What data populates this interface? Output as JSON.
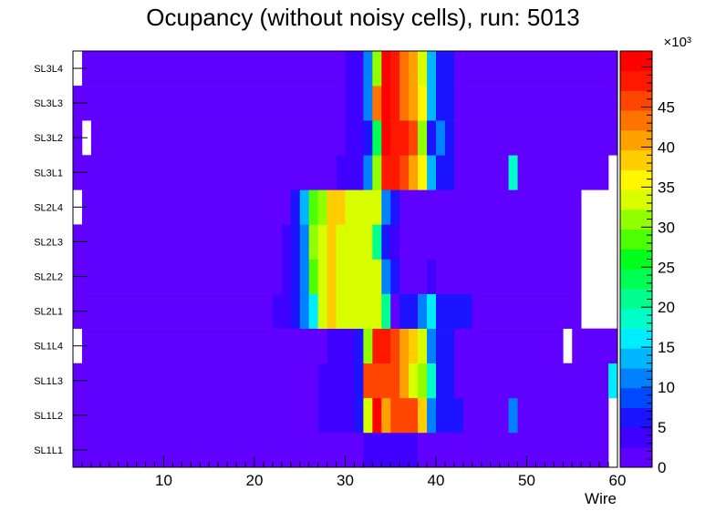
{
  "chart_data": {
    "type": "heatmap",
    "title": "Ocupancy (without noisy cells), run: 5013",
    "xlabel": "Wire",
    "ylabel": "",
    "xlim": [
      0,
      60
    ],
    "x_ticks": [
      10,
      20,
      30,
      40,
      50,
      60
    ],
    "x_tick_labels": [
      "10",
      "20",
      "30",
      "40",
      "50",
      "60"
    ],
    "layers": [
      "SL1L1",
      "SL1L2",
      "SL1L3",
      "SL1L4",
      "SL2L1",
      "SL2L2",
      "SL2L3",
      "SL2L4",
      "SL3L1",
      "SL3L2",
      "SL3L3",
      "SL3L4"
    ],
    "z_min": 0,
    "z_max": 52,
    "z_multiplier_label": "×10³",
    "z_ticks": [
      0,
      5,
      10,
      15,
      20,
      25,
      30,
      35,
      40,
      45
    ],
    "z_tick_labels": [
      "0",
      "5",
      "10",
      "15",
      "20",
      "25",
      "30",
      "35",
      "40",
      "45"
    ],
    "palette": [
      "#6000ff",
      "#4000ff",
      "#1c13ff",
      "#0049ff",
      "#0081ff",
      "#00b6ff",
      "#00edff",
      "#00ffc8",
      "#00ff8f",
      "#00ff55",
      "#00ff1c",
      "#4dff00",
      "#92ff00",
      "#d7ff00",
      "#fff600",
      "#ffcd00",
      "#ffa100",
      "#ff7400",
      "#ff4600",
      "#ff1800",
      "#ff0000"
    ],
    "background_value": 1.5,
    "rows": [
      {
        "layer": "SL1L1",
        "empty": [
          60
        ],
        "cells": [
          [
            33,
            38,
            4
          ]
        ]
      },
      {
        "layer": "SL1L2",
        "empty": [
          60
        ],
        "cells": [
          [
            28,
            31,
            3.5
          ],
          [
            32,
            32,
            7
          ],
          [
            33,
            33,
            33
          ],
          [
            34,
            34,
            50
          ],
          [
            35,
            35,
            41
          ],
          [
            36,
            37,
            45
          ],
          [
            38,
            38,
            47
          ],
          [
            39,
            39,
            38
          ],
          [
            40,
            40,
            12
          ],
          [
            41,
            43,
            5
          ],
          [
            49,
            49,
            12
          ]
        ]
      },
      {
        "layer": "SL1L3",
        "empty": [],
        "cells": [
          [
            28,
            31,
            3.5
          ],
          [
            32,
            32,
            7
          ],
          [
            33,
            36,
            46
          ],
          [
            37,
            37,
            42
          ],
          [
            38,
            38,
            34
          ],
          [
            39,
            39,
            30
          ],
          [
            40,
            40,
            18
          ],
          [
            41,
            42,
            5
          ],
          [
            60,
            60,
            17
          ]
        ]
      },
      {
        "layer": "SL1L4",
        "empty": [
          1,
          55
        ],
        "cells": [
          [
            29,
            31,
            3.5
          ],
          [
            32,
            32,
            7
          ],
          [
            33,
            33,
            31
          ],
          [
            34,
            35,
            48
          ],
          [
            36,
            36,
            45
          ],
          [
            37,
            37,
            42
          ],
          [
            38,
            38,
            38
          ],
          [
            39,
            39,
            33
          ],
          [
            40,
            40,
            10
          ],
          [
            41,
            42,
            5
          ]
        ]
      },
      {
        "layer": "SL2L1",
        "empty": [
          57,
          58,
          59,
          60
        ],
        "cells": [
          [
            23,
            24,
            3.5
          ],
          [
            25,
            25,
            6
          ],
          [
            26,
            26,
            10
          ],
          [
            27,
            27,
            16
          ],
          [
            28,
            28,
            34
          ],
          [
            29,
            29,
            38
          ],
          [
            30,
            34,
            33
          ],
          [
            35,
            35,
            20
          ],
          [
            37,
            38,
            5
          ],
          [
            39,
            39,
            10
          ],
          [
            40,
            40,
            16
          ],
          [
            41,
            44,
            5
          ]
        ]
      },
      {
        "layer": "SL2L2",
        "empty": [
          57,
          58,
          59,
          60
        ],
        "cells": [
          [
            24,
            24,
            3.5
          ],
          [
            25,
            25,
            6
          ],
          [
            26,
            26,
            12
          ],
          [
            27,
            27,
            28
          ],
          [
            28,
            28,
            34
          ],
          [
            29,
            29,
            38
          ],
          [
            30,
            34,
            33
          ],
          [
            35,
            35,
            10
          ],
          [
            36,
            36,
            6
          ],
          [
            40,
            40,
            4
          ]
        ]
      },
      {
        "layer": "SL2L3",
        "empty": [
          57,
          58,
          59,
          60
        ],
        "cells": [
          [
            24,
            24,
            3.5
          ],
          [
            25,
            25,
            6
          ],
          [
            26,
            26,
            12
          ],
          [
            27,
            27,
            30
          ],
          [
            28,
            28,
            34
          ],
          [
            29,
            29,
            38
          ],
          [
            30,
            33,
            33
          ],
          [
            34,
            34,
            20
          ],
          [
            35,
            35,
            6
          ],
          [
            36,
            36,
            4
          ]
        ]
      },
      {
        "layer": "SL2L4",
        "empty": [
          1,
          57,
          58,
          59,
          60
        ],
        "cells": [
          [
            25,
            25,
            6
          ],
          [
            26,
            26,
            14
          ],
          [
            27,
            27,
            28
          ],
          [
            28,
            28,
            32
          ],
          [
            29,
            30,
            38
          ],
          [
            31,
            34,
            33
          ],
          [
            35,
            35,
            10
          ],
          [
            36,
            36,
            6
          ]
        ]
      },
      {
        "layer": "SL3L1",
        "empty": [
          60
        ],
        "cells": [
          [
            30,
            32,
            3.5
          ],
          [
            33,
            33,
            12
          ],
          [
            34,
            34,
            31
          ],
          [
            35,
            36,
            48
          ],
          [
            37,
            37,
            45
          ],
          [
            38,
            38,
            40
          ],
          [
            39,
            39,
            36
          ],
          [
            40,
            40,
            14
          ],
          [
            41,
            42,
            5
          ],
          [
            49,
            49,
            18
          ]
        ]
      },
      {
        "layer": "SL3L2",
        "empty": [
          2
        ],
        "cells": [
          [
            31,
            32,
            3.5
          ],
          [
            33,
            33,
            7
          ],
          [
            34,
            34,
            24
          ],
          [
            35,
            35,
            50
          ],
          [
            36,
            37,
            48
          ],
          [
            38,
            38,
            45
          ],
          [
            39,
            39,
            30
          ],
          [
            40,
            40,
            7
          ],
          [
            41,
            41,
            10
          ],
          [
            42,
            42,
            5
          ]
        ]
      },
      {
        "layer": "SL3L3",
        "empty": [],
        "cells": [
          [
            31,
            32,
            3.5
          ],
          [
            33,
            33,
            10
          ],
          [
            34,
            34,
            44
          ],
          [
            35,
            35,
            50
          ],
          [
            36,
            36,
            48
          ],
          [
            37,
            37,
            43
          ],
          [
            38,
            38,
            40
          ],
          [
            39,
            39,
            36
          ],
          [
            40,
            40,
            14
          ],
          [
            41,
            41,
            6
          ],
          [
            42,
            42,
            5
          ]
        ]
      },
      {
        "layer": "SL3L4",
        "empty": [
          1
        ],
        "cells": [
          [
            31,
            32,
            3.5
          ],
          [
            33,
            33,
            10
          ],
          [
            34,
            34,
            30
          ],
          [
            35,
            35,
            50
          ],
          [
            36,
            36,
            48
          ],
          [
            37,
            37,
            44
          ],
          [
            38,
            38,
            40
          ],
          [
            39,
            39,
            34
          ],
          [
            40,
            40,
            14
          ],
          [
            41,
            41,
            6
          ],
          [
            42,
            42,
            5
          ]
        ]
      }
    ]
  }
}
